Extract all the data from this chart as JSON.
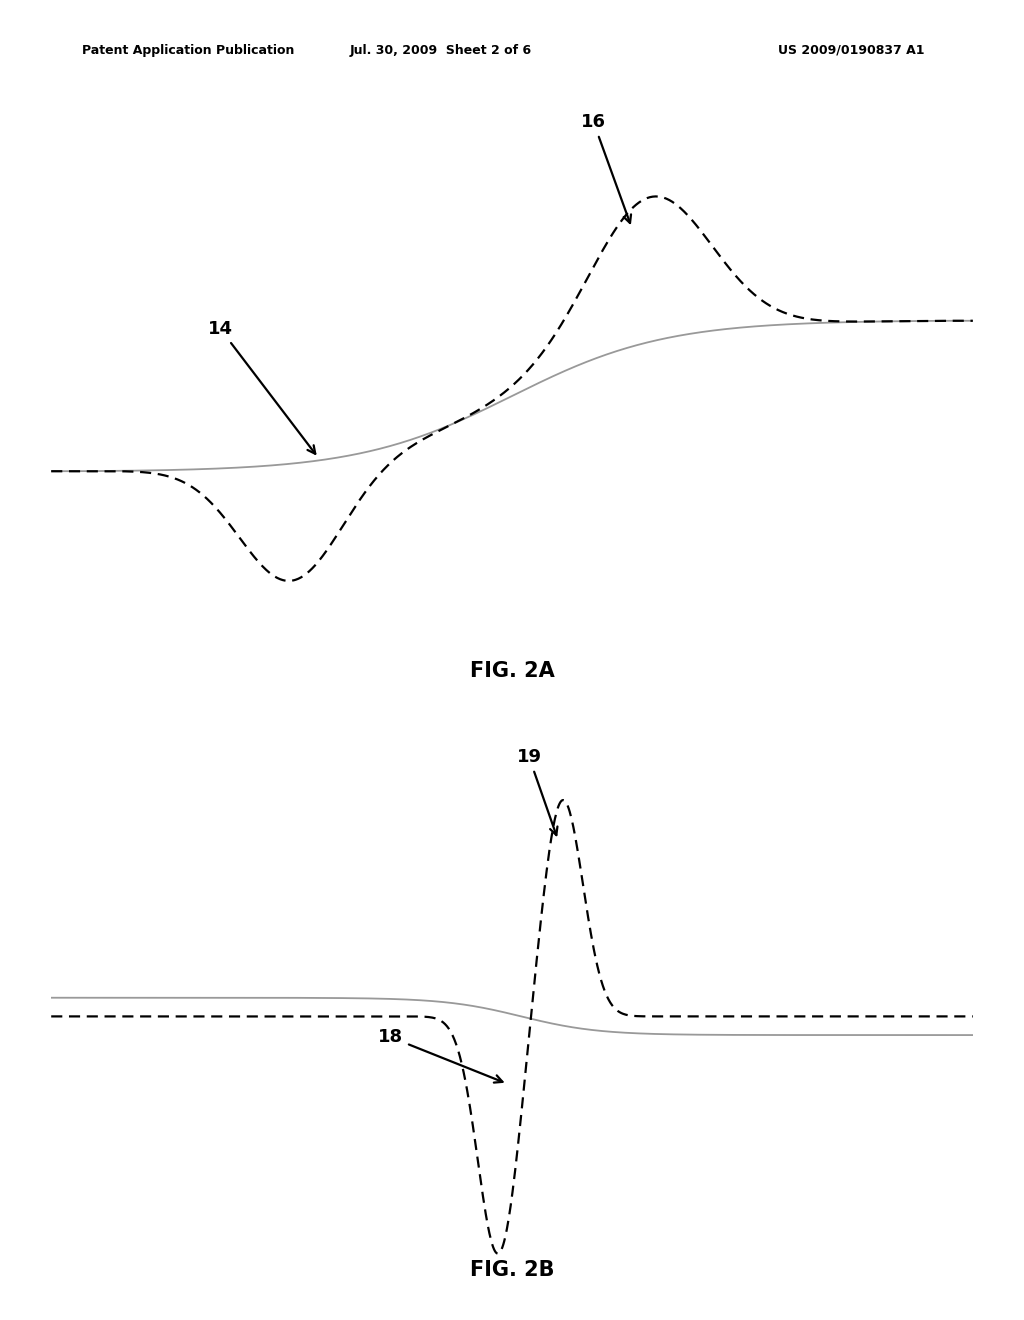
{
  "header_left": "Patent Application Publication",
  "header_mid": "Jul. 30, 2009  Sheet 2 of 6",
  "header_right": "US 2009/0190837 A1",
  "fig2a_label": "FIG. 2A",
  "fig2b_label": "FIG. 2B",
  "label_14": "14",
  "label_16": "16",
  "label_18": "18",
  "label_19": "19",
  "background_color": "#ffffff",
  "solid_line_color": "#999999",
  "dashed_line_color": "#000000"
}
